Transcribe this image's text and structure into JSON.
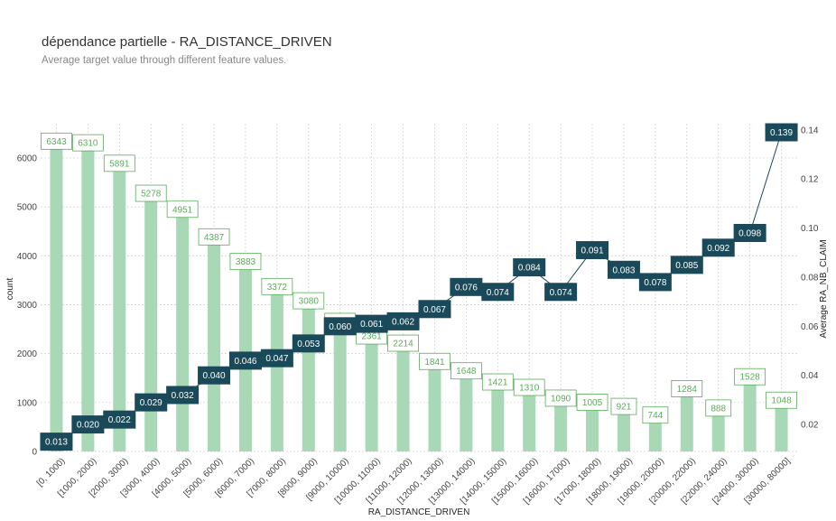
{
  "header": {
    "title": "dépendance partielle - RA_DISTANCE_DRIVEN",
    "subtitle": "Average target value through different feature values."
  },
  "colors": {
    "bar": "#a8d8b5",
    "bar_label_text": "#5aab5a",
    "bar_label_border": "#5aab5a",
    "line": "#1a4a5a",
    "line_label_bg": "#1a4a5a",
    "grid": "#cccccc"
  },
  "chart_data": {
    "type": "bar",
    "xlabel": "RA_DISTANCE_DRIVEN",
    "ylabel": "count",
    "y2label": "Average RA_NB_CLAIM",
    "ylim": [
      0,
      6700
    ],
    "y2lim": [
      0.009,
      0.1425
    ],
    "yticks": [
      0,
      1000,
      2000,
      3000,
      4000,
      5000,
      6000
    ],
    "y2ticks": [
      0.02,
      0.04,
      0.06,
      0.08,
      0.1,
      0.12,
      0.14
    ],
    "grid": true,
    "categories": [
      "[0, 1000)",
      "[1000, 2000)",
      "[2000, 3000)",
      "[3000, 4000)",
      "[4000, 5000)",
      "[5000, 6000)",
      "[6000, 7000)",
      "[7000, 8000)",
      "[8000, 9000)",
      "[9000, 10000)",
      "[10000, 11000)",
      "[11000, 12000)",
      "[12000, 13000)",
      "[13000, 14000)",
      "[14000, 15000)",
      "[15000, 16000)",
      "[16000, 17000)",
      "[17000, 18000)",
      "[18000, 19000)",
      "[19000, 20000)",
      "[20000, 22000)",
      "[22000, 24000)",
      "[24000, 30000)",
      "[30000, 80000]"
    ],
    "series": [
      {
        "values": [
          6343,
          6310,
          5891,
          5278,
          4951,
          4387,
          3883,
          3372,
          3080,
          2659,
          2361,
          2214,
          1841,
          1648,
          1421,
          1310,
          1090,
          1005,
          921,
          744,
          1284,
          888,
          1528,
          1048
        ],
        "labels": [
          "6343",
          "6310",
          "5891",
          "5278",
          "4951",
          "4387",
          "3883",
          "3372",
          "3080",
          "2659",
          "2361",
          "2214",
          "1841",
          "1648",
          "1421",
          "1310",
          "1090",
          "1005",
          "921",
          "744",
          "1284",
          "888",
          "1528",
          "1048"
        ]
      },
      {
        "type": "line",
        "values": [
          0.013,
          0.02,
          0.022,
          0.029,
          0.032,
          0.04,
          0.046,
          0.047,
          0.053,
          0.06,
          0.061,
          0.062,
          0.067,
          0.076,
          0.074,
          0.084,
          0.074,
          0.091,
          0.083,
          0.078,
          0.085,
          0.092,
          0.098,
          0.139
        ],
        "labels": [
          "0.013",
          "0.020",
          "0.022",
          "0.029",
          "0.032",
          "0.040",
          "0.046",
          "0.047",
          "0.053",
          "0.060",
          "0.061",
          "0.062",
          "0.067",
          "0.076",
          "0.074",
          "0.084",
          "0.074",
          "0.091",
          "0.083",
          "0.078",
          "0.085",
          "0.092",
          "0.098",
          "0.139"
        ]
      }
    ]
  }
}
